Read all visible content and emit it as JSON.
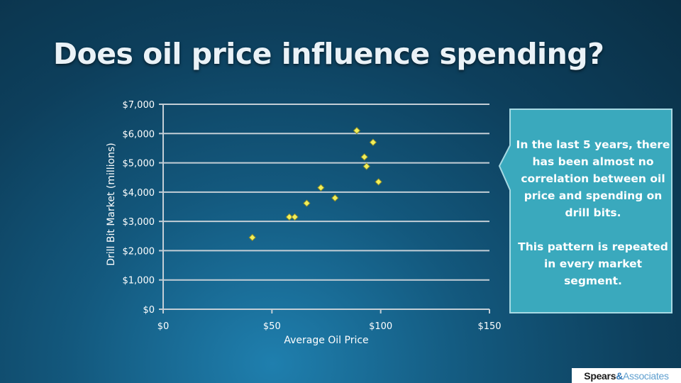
{
  "slide": {
    "title": "Does oil price influence spending?"
  },
  "callout": {
    "paragraph1": "In the last 5 years, there has been almost no correlation between oil price and spending on drill bits.",
    "paragraph2": "This pattern is repeated in every market segment.",
    "fill": "#3aa9bd",
    "border": "#a7d9e3"
  },
  "logo": {
    "word1": "Spears",
    "ampersand": "&",
    "word2": "Associates"
  },
  "chart_data": {
    "type": "scatter",
    "title": "",
    "xlabel": "Average Oil Price",
    "ylabel": "Drill Bit Market (millions)",
    "xlim": [
      0,
      150
    ],
    "ylim": [
      0,
      7000
    ],
    "x_ticks": [
      {
        "value": 0,
        "label": "$0"
      },
      {
        "value": 50,
        "label": "$50"
      },
      {
        "value": 100,
        "label": "$100"
      },
      {
        "value": 150,
        "label": "$150"
      }
    ],
    "y_ticks": [
      {
        "value": 0,
        "label": "$0"
      },
      {
        "value": 1000,
        "label": "$1,000"
      },
      {
        "value": 2000,
        "label": "$2,000"
      },
      {
        "value": 3000,
        "label": "$3,000"
      },
      {
        "value": 4000,
        "label": "$4,000"
      },
      {
        "value": 5000,
        "label": "$5,000"
      },
      {
        "value": 6000,
        "label": "$6,000"
      },
      {
        "value": 7000,
        "label": "$7,000"
      }
    ],
    "grid": "horizontal",
    "marker": "diamond",
    "marker_color": "#f2ef5a",
    "series": [
      {
        "points": [
          {
            "x": 41,
            "y": 2450
          },
          {
            "x": 58,
            "y": 3150
          },
          {
            "x": 60.5,
            "y": 3150
          },
          {
            "x": 66,
            "y": 3620
          },
          {
            "x": 72.5,
            "y": 4150
          },
          {
            "x": 79,
            "y": 3800
          },
          {
            "x": 89,
            "y": 6100
          },
          {
            "x": 92.5,
            "y": 5200
          },
          {
            "x": 93.5,
            "y": 4880
          },
          {
            "x": 96.5,
            "y": 5700
          },
          {
            "x": 99,
            "y": 4350
          }
        ]
      }
    ]
  }
}
